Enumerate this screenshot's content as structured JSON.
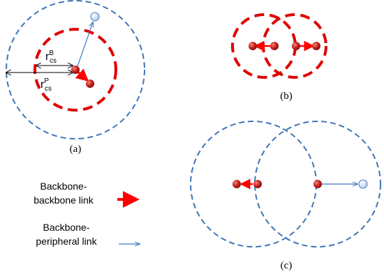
{
  "panels": {
    "a": {
      "caption": "(a)"
    },
    "b": {
      "caption": "(b)"
    },
    "c": {
      "caption": "(c)"
    }
  },
  "radii": {
    "backbone": {
      "symbol": "r",
      "superscript": "B",
      "subscript": "cs"
    },
    "peripheral": {
      "symbol": "r",
      "superscript": "P",
      "subscript": "cs"
    }
  },
  "legend": {
    "backbone_link": {
      "line1": "Backbone-",
      "line2": "backbone link"
    },
    "peripheral_link": {
      "line1": "Backbone-",
      "line2": "peripheral link"
    }
  },
  "colors": {
    "backbone_range": "#e00000",
    "peripheral_range": "#3d74b6",
    "backbone_node": "#c8201f",
    "peripheral_node": "#c5d9f1",
    "backbone_link": "#ff0000",
    "peripheral_link": "#3a78c3"
  }
}
